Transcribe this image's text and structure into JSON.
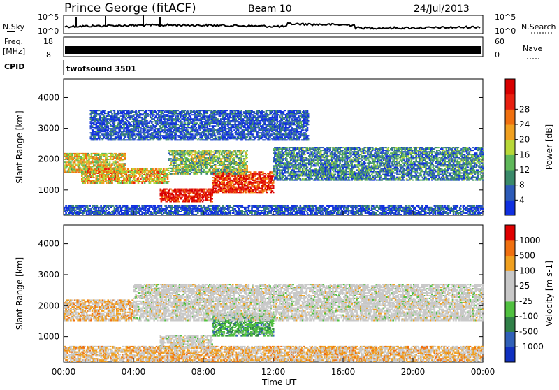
{
  "header": {
    "station": "Prince George (fitACF)",
    "beam": "Beam 10",
    "date": "24/Jul/2013"
  },
  "strip": {
    "nsky_label": "N.Sky",
    "nsearch_label": "N.Search",
    "noise_ticks_left": [
      "10^5",
      "10^0"
    ],
    "noise_ticks_right": [
      "10^5",
      "10^0"
    ],
    "freq_label_line1": "Freq.",
    "freq_label_line2": "[MHz]",
    "freq_ticks": [
      "18",
      "8"
    ],
    "nave_label": "Nave",
    "nave_ticks": [
      "60",
      "0"
    ],
    "cpid_label": "CPID",
    "cpid_value": "twofsound 3501"
  },
  "chart_data": [
    {
      "type": "heatmap",
      "name": "power",
      "ylabel": "Slant Range [km]",
      "yticks": [
        1000,
        2000,
        3000,
        4000
      ],
      "ylim": [
        180,
        4600
      ],
      "xlim": [
        0,
        24
      ],
      "colorbar": {
        "label": "Power [dB]",
        "ticks": [
          "4",
          "8",
          "12",
          "16",
          "20",
          "24",
          "28"
        ],
        "colors": [
          "#1030e0",
          "#2d5bb8",
          "#3a8a6a",
          "#5fb85a",
          "#b8d838",
          "#f0a020",
          "#f07010",
          "#e82010",
          "#d80000"
        ]
      },
      "bands": [
        {
          "x": [
            0.0,
            3.5
          ],
          "y": [
            1550,
            2200
          ],
          "level": 0.55
        },
        {
          "x": [
            1.0,
            6.0
          ],
          "y": [
            1200,
            1700
          ],
          "level": 0.6
        },
        {
          "x": [
            5.5,
            8.5
          ],
          "y": [
            600,
            1050
          ],
          "level": 0.92
        },
        {
          "x": [
            8.5,
            12.0
          ],
          "y": [
            900,
            1600
          ],
          "level": 0.85
        },
        {
          "x": [
            6.0,
            10.5
          ],
          "y": [
            1500,
            2300
          ],
          "level": 0.4
        },
        {
          "x": [
            12.0,
            24.0
          ],
          "y": [
            1300,
            2400
          ],
          "level": 0.25
        },
        {
          "x": [
            0.0,
            24.0
          ],
          "y": [
            180,
            500
          ],
          "level": 0.1
        },
        {
          "x": [
            1.5,
            14.0
          ],
          "y": [
            2600,
            3600
          ],
          "level": 0.12
        }
      ]
    },
    {
      "type": "heatmap",
      "name": "velocity",
      "ylabel": "Slant Range [km]",
      "yticks": [
        1000,
        2000,
        3000,
        4000
      ],
      "ylim": [
        180,
        4600
      ],
      "xlim": [
        0,
        24
      ],
      "colorbar": {
        "label": "Velocity [m s-1]",
        "ticks": [
          "1000",
          "500",
          "100",
          "25",
          "-25",
          "-100",
          "-500",
          "-1000"
        ],
        "colors": [
          "#1030c0",
          "#3060b8",
          "#308048",
          "#50c040",
          "#c8c8c8",
          "#c8c8c8",
          "#f0a020",
          "#f07010",
          "#e00000"
        ]
      },
      "bands": [
        {
          "x": [
            0.0,
            4.0
          ],
          "y": [
            1500,
            2200
          ],
          "kind": "orange-grey"
        },
        {
          "x": [
            5.5,
            8.5
          ],
          "y": [
            600,
            1050
          ],
          "kind": "grey"
        },
        {
          "x": [
            8.5,
            12.0
          ],
          "y": [
            1000,
            1750
          ],
          "kind": "green"
        },
        {
          "x": [
            4.0,
            24.0
          ],
          "y": [
            1500,
            2700
          ],
          "kind": "grey"
        },
        {
          "x": [
            0.0,
            24.0
          ],
          "y": [
            180,
            700
          ],
          "kind": "orange-grey"
        }
      ]
    }
  ],
  "time_axis": {
    "label": "Time UT",
    "ticks": [
      "00:00",
      "04:00",
      "08:00",
      "12:00",
      "16:00",
      "20:00",
      "00:00"
    ],
    "hours": [
      0,
      4,
      8,
      12,
      16,
      20,
      24
    ]
  }
}
